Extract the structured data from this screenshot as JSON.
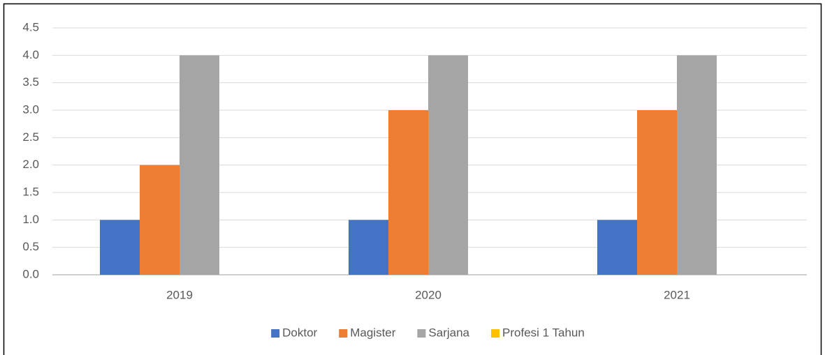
{
  "chart_data": {
    "type": "bar",
    "categories": [
      "2019",
      "2020",
      "2021"
    ],
    "series": [
      {
        "name": "Doktor",
        "color": "#4472c4",
        "values": [
          1,
          1,
          1
        ]
      },
      {
        "name": "Magister",
        "color": "#ed7d31",
        "values": [
          2,
          3,
          3
        ]
      },
      {
        "name": "Sarjana",
        "color": "#a5a5a5",
        "values": [
          4,
          4,
          4
        ]
      },
      {
        "name": "Profesi 1 Tahun",
        "color": "#ffc000",
        "values": [
          0,
          0,
          0
        ]
      }
    ],
    "ylim": [
      0,
      4.5
    ],
    "yticks": [
      {
        "value": 0,
        "label": "0.0"
      },
      0.5,
      {
        "value": 1,
        "label": "1.0"
      },
      1.5,
      {
        "value": 2,
        "label": "2.0"
      },
      2.5,
      {
        "value": 3,
        "label": "3.0"
      },
      3.5,
      {
        "value": 4,
        "label": "4.0"
      },
      4.5
    ],
    "grid": true,
    "legend": "bottom"
  }
}
